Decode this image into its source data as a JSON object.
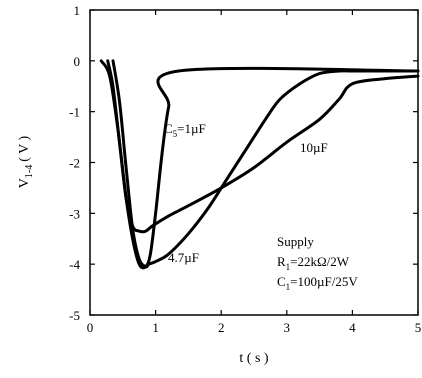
{
  "chart_data": {
    "type": "line",
    "title": "",
    "xlabel": "t ( s )",
    "ylabel": "V",
    "ylabel_sub": "1-4",
    "ylabel_unit": "( V )",
    "xlim": [
      0,
      5
    ],
    "ylim": [
      -5,
      1
    ],
    "x_ticks": [
      "0",
      "1",
      "2",
      "3",
      "4",
      "5"
    ],
    "y_ticks": [
      "1",
      "0",
      "-1",
      "-2",
      "-3",
      "-4",
      "-5"
    ],
    "x_tick_values": [
      0,
      1,
      2,
      3,
      4,
      5
    ],
    "y_tick_values": [
      1,
      0,
      -1,
      -2,
      -3,
      -4,
      -5
    ],
    "grid": false,
    "series": [
      {
        "name": "C5=1µF",
        "x": [
          0.17,
          0.3,
          0.42,
          0.55,
          0.65,
          0.75,
          0.85,
          0.92,
          1.0,
          1.1,
          1.2,
          1.35,
          5.0
        ],
        "y": [
          0,
          -0.3,
          -1.3,
          -2.7,
          -3.5,
          -4.0,
          -4.05,
          -3.8,
          -3.0,
          -1.8,
          -0.9,
          -0.2,
          -0.2
        ]
      },
      {
        "name": "4.7µF",
        "x": [
          0.35,
          0.45,
          0.55,
          0.65,
          0.75,
          0.85,
          0.9,
          1.0,
          1.2,
          1.5,
          1.8,
          2.1,
          2.4,
          2.7,
          2.9,
          3.2,
          3.5,
          3.8,
          4.0,
          4.5,
          5.0
        ],
        "y": [
          0,
          -0.8,
          -2.1,
          -3.3,
          -3.9,
          -4.05,
          -4.0,
          -3.95,
          -3.8,
          -3.4,
          -2.9,
          -2.3,
          -1.7,
          -1.1,
          -0.75,
          -0.45,
          -0.25,
          -0.2,
          -0.2,
          -0.2,
          -0.2
        ]
      },
      {
        "name": "10µF",
        "x": [
          0.27,
          0.35,
          0.45,
          0.55,
          0.65,
          0.75,
          0.85,
          0.95,
          1.2,
          1.5,
          2.0,
          2.5,
          3.0,
          3.5,
          3.8,
          4.0,
          4.5,
          5.0
        ],
        "y": [
          0,
          -0.5,
          -1.6,
          -2.7,
          -3.25,
          -3.35,
          -3.35,
          -3.25,
          -3.05,
          -2.85,
          -2.5,
          -2.1,
          -1.6,
          -1.15,
          -0.75,
          -0.45,
          -0.35,
          -0.3
        ]
      }
    ],
    "annotations": {
      "c5_label": "C5=1µF",
      "c5_prefix": "C",
      "c5_sub": "5",
      "c5_suffix": "=1µF",
      "label_47": "4.7µF",
      "label_10": "10µF",
      "supply_title": "Supply",
      "r1_prefix": "R",
      "r1_sub": "1",
      "r1_suffix": "=22kΩ/2W",
      "c1_prefix": "C",
      "c1_sub": "1",
      "c1_suffix": "=100µF/25V"
    }
  }
}
